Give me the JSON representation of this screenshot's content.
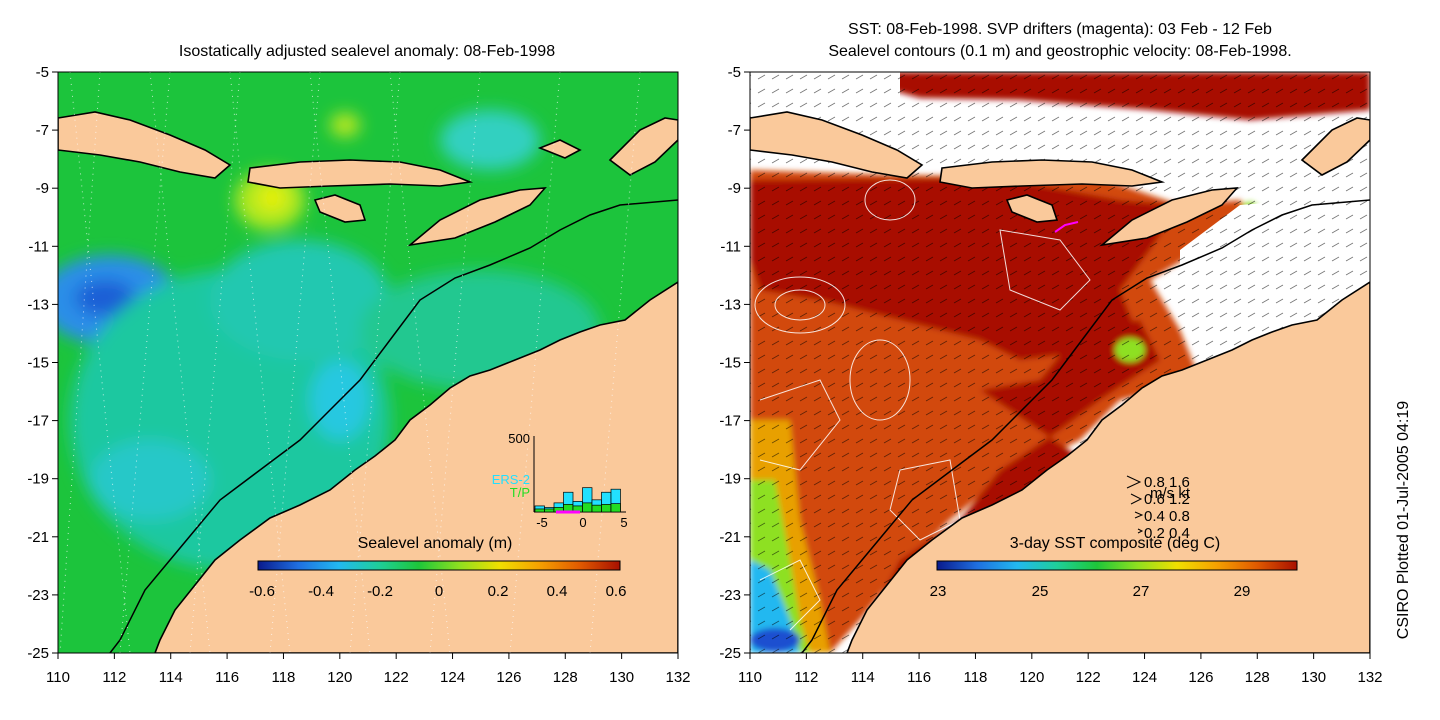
{
  "left_panel": {
    "title": "Isostatically adjusted sealevel anomaly: 08-Feb-1998",
    "colorbar": {
      "label": "Sealevel anomaly (m)",
      "ticks": [
        "-0.6",
        "-0.4",
        "-0.2",
        "0",
        "0.2",
        "0.4",
        "0.6"
      ],
      "colors": [
        "#0a1a8c",
        "#1f6fe0",
        "#22b8f0",
        "#1fcf9a",
        "#1ec63a",
        "#8ee020",
        "#f0e000",
        "#f5a000",
        "#e05a00",
        "#a81000"
      ]
    },
    "inset": {
      "ymax_label": "500",
      "series_labels": [
        "ERS-2",
        "T/P"
      ],
      "series_colors": [
        "#22e0ff",
        "#22dd22"
      ],
      "x_ticks": [
        "-5",
        "0",
        "5"
      ],
      "ers2_values": [
        40,
        30,
        60,
        130,
        70,
        160,
        80,
        130,
        150
      ],
      "tp_values": [
        20,
        20,
        30,
        50,
        40,
        60,
        45,
        50,
        55
      ]
    }
  },
  "right_panel": {
    "title_line1": "SST: 08-Feb-1998. SVP drifters (magenta): 03 Feb - 12 Feb",
    "title_line2": "Sealevel contours (0.1 m) and geostrophic velocity: 08-Feb-1998.",
    "colorbar": {
      "label": "3-day SST composite (deg C)",
      "ticks": [
        "23",
        "25",
        "27",
        "29"
      ],
      "colors": [
        "#0a1a8c",
        "#1f6fe0",
        "#22b8f0",
        "#1fcf9a",
        "#1ec63a",
        "#8ee020",
        "#f0e000",
        "#f5a000",
        "#e05a00",
        "#a81000"
      ]
    },
    "velocity_legend": {
      "header": "m/s  kt",
      "rows": [
        "0.8  1.6",
        "0.6  1.2",
        "0.4  0.8",
        "0.2  0.4"
      ]
    }
  },
  "axes": {
    "x_ticks": [
      "110",
      "112",
      "114",
      "116",
      "118",
      "120",
      "122",
      "124",
      "126",
      "128",
      "130",
      "132"
    ],
    "y_ticks": [
      "-5",
      "-7",
      "-9",
      "-11",
      "-13",
      "-15",
      "-17",
      "-19",
      "-21",
      "-23",
      "-25"
    ]
  },
  "colors": {
    "land": "#fac99b",
    "ocean_green": "#1cc43c",
    "sst_hot": "#a81000",
    "sst_warm": "#d24a08"
  },
  "credit": "CSIRO Plotted 01-Jul-2005 04:19"
}
